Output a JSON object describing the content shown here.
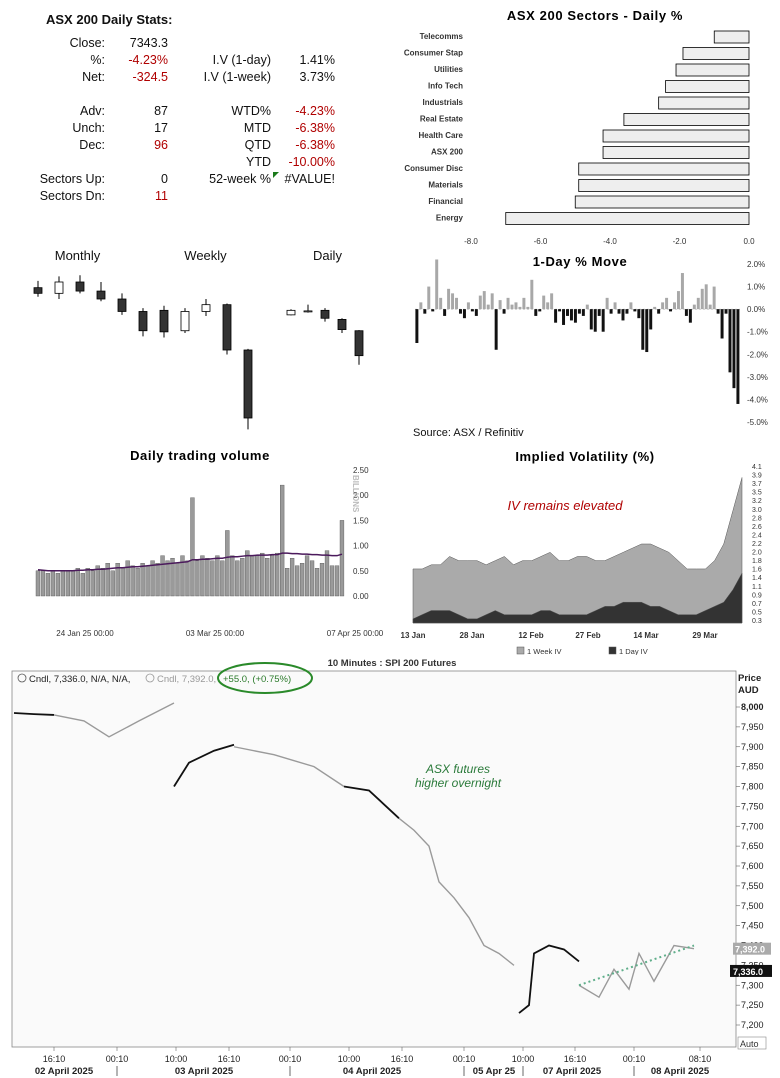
{
  "stats": {
    "title": "ASX 200 Daily Stats:",
    "left": [
      {
        "label": "Close:",
        "value": "7343.3",
        "neg": false
      },
      {
        "label": "%:",
        "value": "-4.23%",
        "neg": true
      },
      {
        "label": "Net:",
        "value": "-324.5",
        "neg": true
      },
      {
        "label": "Adv:",
        "value": "87",
        "neg": false
      },
      {
        "label": "Unch:",
        "value": "17",
        "neg": false
      },
      {
        "label": "Dec:",
        "value": "96",
        "neg": true
      },
      {
        "label": "Sectors Up:",
        "value": "0",
        "neg": false
      },
      {
        "label": "Sectors Dn:",
        "value": "11",
        "neg": true
      }
    ],
    "right": [
      {
        "label": "I.V (1-day)",
        "value": "1.41%",
        "neg": false
      },
      {
        "label": "I.V (1-week)",
        "value": "3.73%",
        "neg": false
      },
      {
        "label": "WTD%",
        "value": "-4.23%",
        "neg": true
      },
      {
        "label": "MTD",
        "value": "-6.38%",
        "neg": true
      },
      {
        "label": "QTD",
        "value": "-6.38%",
        "neg": true
      },
      {
        "label": "YTD",
        "value": "-10.00%",
        "neg": true
      },
      {
        "label": "52-week %",
        "value": "#VALUE!",
        "neg": false
      }
    ]
  },
  "candle_titles": {
    "monthly": "Monthly",
    "weekly": "Weekly",
    "daily": "Daily"
  },
  "source": "Source: ASX / Refinitiv",
  "chart_data": [
    {
      "type": "bar",
      "orientation": "horizontal",
      "title": "ASX 200 Sectors - Daily %",
      "categories": [
        "Telecomms",
        "Consumer Stap",
        "Utilities",
        "Info Tech",
        "Industrials",
        "Real Estate",
        "Health Care",
        "ASX 200",
        "Consumer Disc",
        "Materials",
        "Financial",
        "Energy"
      ],
      "values": [
        -1.0,
        -1.9,
        -2.1,
        -2.4,
        -2.6,
        -3.6,
        -4.2,
        -4.2,
        -4.9,
        -4.9,
        -5.0,
        -7.0
      ],
      "xlim": [
        -8,
        0
      ],
      "ticks": [
        "-8.0",
        "-6.0",
        "-4.0",
        "-2.0",
        "0.0"
      ]
    },
    {
      "type": "candlestick",
      "title": "Monthly",
      "candles": [
        {
          "o": 8200,
          "h": 8260,
          "l": 8120,
          "c": 8150
        },
        {
          "o": 8150,
          "h": 8300,
          "l": 8100,
          "c": 8250
        },
        {
          "o": 8250,
          "h": 8310,
          "l": 8150,
          "c": 8170
        },
        {
          "o": 8170,
          "h": 8250,
          "l": 8080,
          "c": 8100
        },
        {
          "o": 8100,
          "h": 8150,
          "l": 7960,
          "c": 7990
        },
        {
          "o": 7990,
          "h": 8020,
          "l": 7770,
          "c": 7820
        }
      ],
      "ylim": [
        6900,
        8400
      ]
    },
    {
      "type": "candlestick",
      "title": "Weekly",
      "candles": [
        {
          "o": 8000,
          "h": 8040,
          "l": 7760,
          "c": 7810
        },
        {
          "o": 7820,
          "h": 8020,
          "l": 7800,
          "c": 7990
        },
        {
          "o": 7990,
          "h": 8100,
          "l": 7950,
          "c": 8050
        },
        {
          "o": 8050,
          "h": 8060,
          "l": 7610,
          "c": 7650
        },
        {
          "o": 7650,
          "h": 7660,
          "l": 6950,
          "c": 7050
        }
      ],
      "ylim": [
        6900,
        8400
      ]
    },
    {
      "type": "candlestick",
      "title": "Daily",
      "candles": [
        {
          "o": 7960,
          "h": 8010,
          "l": 7955,
          "c": 8000
        },
        {
          "o": 7990,
          "h": 8050,
          "l": 7980,
          "c": 7995
        },
        {
          "o": 8000,
          "h": 8020,
          "l": 7900,
          "c": 7930
        },
        {
          "o": 7920,
          "h": 7930,
          "l": 7800,
          "c": 7830
        },
        {
          "o": 7820,
          "h": 7825,
          "l": 7520,
          "c": 7600
        }
      ],
      "ylim": [
        6900,
        8400
      ]
    },
    {
      "type": "bar",
      "title": "1-Day % Move",
      "values": [
        -1.5,
        0.3,
        -0.2,
        1.0,
        -0.1,
        2.2,
        0.5,
        -0.3,
        0.9,
        0.7,
        0.5,
        -0.2,
        -0.4,
        0.3,
        -0.1,
        -0.3,
        0.6,
        0.8,
        0.2,
        0.7,
        -1.8,
        0.4,
        -0.2,
        0.5,
        0.2,
        0.3,
        0.1,
        0.5,
        0.1,
        1.3,
        -0.3,
        -0.1,
        0.6,
        0.3,
        0.7,
        -0.6,
        -0.1,
        -0.7,
        -0.3,
        -0.5,
        -0.6,
        -0.2,
        -0.3,
        0.2,
        -0.9,
        -1.0,
        -0.3,
        -1.0,
        0.5,
        -0.2,
        0.3,
        -0.2,
        -0.5,
        -0.2,
        0.3,
        -0.1,
        -0.4,
        -1.8,
        -1.9,
        -0.9,
        0.1,
        -0.2,
        0.3,
        0.5,
        -0.1,
        0.3,
        0.8,
        1.6,
        -0.3,
        -0.6,
        0.2,
        0.5,
        0.9,
        1.1,
        0.2,
        1.0,
        -0.2,
        -1.3,
        -0.2,
        -2.8,
        -3.5,
        -4.2
      ],
      "ylim": [
        -5,
        2
      ],
      "ticks": [
        "2.0%",
        "1.0%",
        "0.0%",
        "-1.0%",
        "-2.0%",
        "-3.0%",
        "-4.0%",
        "-5.0%"
      ]
    },
    {
      "type": "bar",
      "title": "Daily trading volume",
      "ylabel": "BILLIONS",
      "x_ticks": [
        "24 Jan 25 00:00",
        "03 Mar 25 00:00",
        "07 Apr 25 00:00"
      ],
      "values": [
        0.5,
        0.5,
        0.45,
        0.5,
        0.45,
        0.5,
        0.5,
        0.5,
        0.55,
        0.45,
        0.55,
        0.5,
        0.6,
        0.55,
        0.65,
        0.5,
        0.65,
        0.55,
        0.7,
        0.6,
        0.55,
        0.65,
        0.6,
        0.7,
        0.65,
        0.8,
        0.7,
        0.75,
        0.65,
        0.8,
        0.7,
        1.95,
        0.7,
        0.8,
        0.75,
        0.7,
        0.8,
        0.7,
        1.3,
        0.8,
        0.7,
        0.75,
        0.9,
        0.8,
        0.8,
        0.85,
        0.75,
        0.8,
        0.85,
        2.2,
        0.55,
        0.75,
        0.6,
        0.65,
        0.8,
        0.7,
        0.55,
        0.65,
        0.9,
        0.6,
        0.6,
        1.5
      ],
      "average": [
        0.52,
        0.51,
        0.5,
        0.5,
        0.5,
        0.5,
        0.5,
        0.5,
        0.51,
        0.51,
        0.52,
        0.52,
        0.53,
        0.53,
        0.54,
        0.55,
        0.56,
        0.56,
        0.57,
        0.58,
        0.58,
        0.59,
        0.6,
        0.61,
        0.62,
        0.63,
        0.64,
        0.65,
        0.66,
        0.67,
        0.68,
        0.72,
        0.72,
        0.73,
        0.73,
        0.74,
        0.75,
        0.75,
        0.77,
        0.78,
        0.78,
        0.79,
        0.8,
        0.8,
        0.81,
        0.81,
        0.81,
        0.82,
        0.82,
        0.85,
        0.85,
        0.84,
        0.84,
        0.83,
        0.83,
        0.82,
        0.82,
        0.81,
        0.81,
        0.8,
        0.8,
        0.83
      ],
      "ylim": [
        0,
        2.5
      ],
      "ticks": [
        "2.50",
        "2.00",
        "1.50",
        "1.00",
        "0.50",
        "0.00"
      ]
    },
    {
      "type": "area",
      "title": "Implied Volatility (%)",
      "annotation": "IV remains elevated",
      "x_ticks": [
        "13 Jan",
        "28 Jan",
        "12 Feb",
        "27 Feb",
        "14 Mar",
        "29 Mar"
      ],
      "y_ticks": [
        "4.1",
        "3.9",
        "3.7",
        "3.5",
        "3.2",
        "3.0",
        "2.8",
        "2.6",
        "2.4",
        "2.2",
        "2.0",
        "1.8",
        "1.6",
        "1.4",
        "1.1",
        "0.9",
        "0.7",
        "0.5",
        "0.3"
      ],
      "ylim": [
        0.3,
        4.1
      ],
      "series": [
        {
          "name": "1 Week IV",
          "values": [
            1.6,
            1.6,
            1.7,
            1.7,
            1.9,
            1.8,
            1.8,
            1.8,
            1.7,
            1.8,
            1.9,
            1.7,
            1.8,
            1.8,
            1.9,
            2.0,
            1.8,
            1.8,
            1.9,
            1.9,
            1.8,
            1.8,
            1.9,
            2.0,
            2.1,
            2.2,
            2.2,
            2.1,
            2.0,
            1.8,
            1.6,
            1.6,
            1.6,
            1.8,
            2.2,
            3.0,
            3.8
          ]
        },
        {
          "name": "1 Day IV",
          "values": [
            0.4,
            0.5,
            0.6,
            0.6,
            0.6,
            0.5,
            0.4,
            0.4,
            0.5,
            0.6,
            0.5,
            0.5,
            0.5,
            0.5,
            0.6,
            0.6,
            0.5,
            0.5,
            0.5,
            0.5,
            0.6,
            0.7,
            0.7,
            0.8,
            0.8,
            0.8,
            0.7,
            0.7,
            0.6,
            0.5,
            0.5,
            0.5,
            0.6,
            0.7,
            0.8,
            1.1,
            1.5
          ]
        }
      ]
    },
    {
      "type": "line",
      "title": "10 Minutes : SPI 200 Futures",
      "legend": [
        "Cndl, 7,336.0, N/A, N/A,",
        "Cndl, 7,392.0,"
      ],
      "change_label": "+55.0, (+0.75%)",
      "annotation": "ASX futures higher overnight",
      "ylabel": "Price AUD",
      "ylim": [
        7150,
        8050
      ],
      "y_ticks": [
        "8,000",
        "7,950",
        "7,900",
        "7,850",
        "7,800",
        "7,750",
        "7,700",
        "7,650",
        "7,600",
        "7,550",
        "7,500",
        "7,450",
        "7,400",
        "7,350",
        "7,300",
        "7,250",
        "7,200"
      ],
      "last_labels": [
        "7,392.0",
        "7,336.0"
      ],
      "auto_label": "Auto",
      "time_ticks": [
        "16:10",
        "00:10",
        "10:00",
        "16:10",
        "00:10",
        "10:00",
        "16:10",
        "00:10",
        "10:00",
        "16:10",
        "00:10",
        "08:10"
      ],
      "date_ticks": [
        "02 April 2025",
        "03 April 2025",
        "04 April 2025",
        "05 Apr 25",
        "07 April 2025",
        "08 April 2025"
      ],
      "segments": [
        {
          "style": "black",
          "points": [
            [
              0,
              7985
            ],
            [
              20,
              7982
            ],
            [
              40,
              7980
            ]
          ]
        },
        {
          "style": "grey",
          "points": [
            [
              40,
              7980
            ],
            [
              70,
              7965
            ],
            [
              95,
              7925
            ],
            [
              125,
              7965
            ],
            [
              160,
              8010
            ]
          ]
        },
        {
          "style": "black",
          "points": [
            [
              160,
              7800
            ],
            [
              175,
              7860
            ],
            [
              200,
              7890
            ],
            [
              220,
              7905
            ]
          ]
        },
        {
          "style": "grey",
          "points": [
            [
              220,
              7900
            ],
            [
              260,
              7880
            ],
            [
              300,
              7850
            ],
            [
              330,
              7800
            ]
          ]
        },
        {
          "style": "black",
          "points": [
            [
              330,
              7800
            ],
            [
              355,
              7790
            ],
            [
              385,
              7720
            ]
          ]
        },
        {
          "style": "grey",
          "points": [
            [
              385,
              7720
            ],
            [
              400,
              7690
            ],
            [
              415,
              7650
            ],
            [
              425,
              7560
            ],
            [
              440,
              7520
            ],
            [
              455,
              7470
            ],
            [
              470,
              7400
            ],
            [
              485,
              7380
            ],
            [
              500,
              7350
            ]
          ]
        },
        {
          "style": "black",
          "points": [
            [
              505,
              7230
            ],
            [
              515,
              7250
            ],
            [
              520,
              7380
            ],
            [
              535,
              7400
            ],
            [
              550,
              7390
            ],
            [
              565,
              7360
            ]
          ]
        },
        {
          "style": "grey",
          "points": [
            [
              565,
              7300
            ],
            [
              585,
              7270
            ],
            [
              600,
              7340
            ],
            [
              615,
              7290
            ],
            [
              625,
              7380
            ],
            [
              640,
              7310
            ],
            [
              660,
              7400
            ],
            [
              680,
              7392
            ]
          ]
        }
      ],
      "trend": [
        [
          565,
          7300
        ],
        [
          680,
          7400
        ]
      ]
    }
  ]
}
